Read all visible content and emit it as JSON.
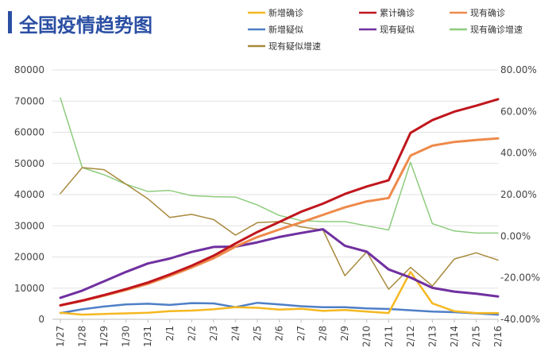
{
  "title": "全国疫情趋势图",
  "colors": {
    "title": "#2b4fa3",
    "grid": "#e2e2e2",
    "axis": "#bdbdbd"
  },
  "chart_data": {
    "type": "line",
    "title": "全国疫情趋势图",
    "x": [
      "1/27",
      "1/28",
      "1/29",
      "1/30",
      "1/31",
      "2/1",
      "2/2",
      "2/3",
      "2/4",
      "2/5",
      "2/6",
      "2/7",
      "2/8",
      "2/9",
      "2/10",
      "2/11",
      "2/12",
      "2/13",
      "2/14",
      "2/15",
      "2/16"
    ],
    "y_left": {
      "min": 0,
      "max": 80000,
      "ticks": [
        "0",
        "10000",
        "20000",
        "30000",
        "40000",
        "50000",
        "60000",
        "70000",
        "80000"
      ]
    },
    "y_right": {
      "min": -40,
      "max": 80,
      "ticks": [
        "-40.00%",
        "-20.00%",
        "0.00%",
        "20.00%",
        "40.00%",
        "60.00%",
        "80.00%"
      ]
    },
    "grid": true,
    "legend_position": "top-right",
    "series": [
      {
        "name": "新增确诊",
        "axis": "left",
        "color": "#f5b821",
        "width": 2.5,
        "values": [
          2100,
          1500,
          1700,
          1900,
          2100,
          2600,
          2800,
          3200,
          3900,
          3700,
          3100,
          3400,
          2700,
          3000,
          2500,
          2000,
          15200,
          5100,
          2600,
          2000,
          2000
        ]
      },
      {
        "name": "累计确诊",
        "axis": "left",
        "color": "#c0161d",
        "width": 3,
        "values": [
          4500,
          6000,
          7800,
          9700,
          11800,
          14400,
          17200,
          20400,
          24300,
          28000,
          31200,
          34500,
          37100,
          40200,
          42600,
          44600,
          59800,
          63900,
          66600,
          68500,
          70600
        ]
      },
      {
        "name": "现有确诊",
        "axis": "left",
        "color": "#ee8a4b",
        "width": 3,
        "values": [
          4400,
          5900,
          7600,
          9400,
          11400,
          13900,
          16600,
          19600,
          23300,
          26400,
          28800,
          31100,
          33500,
          35900,
          37800,
          38900,
          52500,
          55700,
          56900,
          57500,
          58000
        ]
      },
      {
        "name": "新增疑似",
        "axis": "left",
        "color": "#4f7fc6",
        "width": 2.5,
        "values": [
          2000,
          3200,
          4100,
          4800,
          5000,
          4600,
          5200,
          5100,
          3900,
          5300,
          4800,
          4200,
          3900,
          3900,
          3500,
          3300,
          2900,
          2500,
          2300,
          1900,
          1500
        ]
      },
      {
        "name": "现有疑似",
        "axis": "left",
        "color": "#7030a0",
        "width": 3,
        "values": [
          6900,
          9200,
          12200,
          15200,
          17900,
          19500,
          21600,
          23200,
          23300,
          24700,
          26400,
          27700,
          28900,
          23600,
          21700,
          16000,
          13400,
          10100,
          8900,
          8200,
          7300
        ]
      },
      {
        "name": "现有确诊增速",
        "axis": "right",
        "color": "#8dcc7c",
        "width": 1.5,
        "values": [
          66.5,
          33.0,
          29.5,
          25.0,
          21.5,
          22.0,
          19.5,
          19.0,
          18.8,
          15.0,
          10.0,
          7.5,
          7.0,
          7.0,
          5.0,
          3.0,
          35.5,
          6.0,
          2.5,
          1.5,
          1.5
        ]
      },
      {
        "name": "现有疑似增速",
        "axis": "right",
        "color": "#a8893d",
        "width": 1.5,
        "values": [
          20.5,
          33.0,
          32.0,
          25.0,
          18.0,
          9.0,
          10.5,
          8.0,
          0.5,
          6.5,
          7.0,
          4.5,
          3.0,
          -19.0,
          -7.5,
          -25.5,
          -15.0,
          -24.0,
          -11.0,
          -8.0,
          -11.5
        ]
      }
    ]
  }
}
